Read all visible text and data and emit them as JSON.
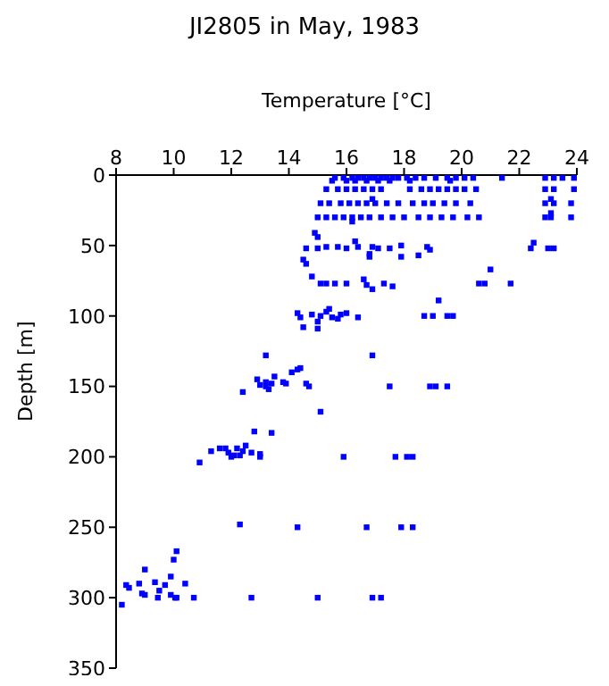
{
  "chart_data": {
    "type": "scatter",
    "title": "JI2805 in May, 1983",
    "xlabel": "Temperature [°C]",
    "ylabel": "Depth [m]",
    "xlim": [
      8,
      24
    ],
    "xticks": [
      8,
      10,
      12,
      14,
      16,
      18,
      20,
      22,
      24
    ],
    "ylim": [
      350,
      0
    ],
    "yticks": [
      0,
      50,
      100,
      150,
      200,
      250,
      300,
      350
    ],
    "marker": "square",
    "series": [
      {
        "color": "#0000ff",
        "x": [
          15.6,
          15.9,
          16.2,
          16.4,
          16.6,
          16.8,
          17.0,
          17.2,
          17.4,
          17.6,
          17.8,
          18.1,
          18.4,
          18.7,
          19.1,
          19.5,
          19.8,
          20.1,
          20.4,
          21.4,
          22.9,
          23.2,
          23.5,
          23.9,
          15.5,
          16.0,
          16.3,
          16.7,
          17.1,
          17.5,
          18.2,
          19.6,
          15.3,
          15.7,
          16.0,
          16.3,
          16.6,
          16.9,
          17.2,
          18.2,
          18.6,
          18.9,
          19.2,
          19.5,
          19.8,
          20.1,
          20.5,
          22.9,
          23.2,
          23.9,
          15.1,
          15.4,
          15.8,
          16.1,
          16.4,
          16.7,
          17.0,
          17.4,
          17.8,
          18.3,
          18.7,
          19.0,
          19.4,
          19.8,
          20.3,
          22.9,
          23.2,
          23.8,
          15.0,
          15.3,
          15.6,
          15.9,
          16.2,
          16.5,
          16.8,
          17.2,
          17.6,
          18.0,
          18.5,
          18.9,
          19.3,
          19.7,
          20.2,
          20.6,
          22.9,
          23.1,
          23.8,
          16.2,
          16.9,
          23.1,
          23.1,
          14.9,
          15.0,
          16.3,
          14.6,
          15.0,
          15.3,
          15.7,
          16.0,
          16.4,
          16.9,
          17.1,
          17.5,
          17.9,
          16.8,
          18.8,
          18.9,
          18.5,
          22.5,
          22.4,
          23.0,
          23.2,
          16.8,
          17.9,
          14.5,
          14.6,
          14.8,
          15.1,
          15.3,
          15.6,
          16.0,
          16.6,
          16.7,
          16.9,
          17.3,
          17.6,
          21.0,
          20.6,
          20.8,
          21.7,
          19.2,
          14.3,
          14.4,
          14.8,
          15.1,
          15.3,
          15.5,
          15.8,
          16.0,
          14.5,
          15.4,
          15.0,
          15.7,
          16.4,
          18.7,
          19.0,
          19.5,
          19.7,
          15.0,
          13.2,
          12.9,
          13.0,
          13.2,
          13.4,
          13.5,
          13.8,
          13.9,
          14.1,
          14.3,
          14.4,
          14.6,
          14.7,
          13.2,
          12.4,
          13.3,
          16.9,
          17.5,
          18.9,
          19.1,
          19.5,
          15.1,
          13.4,
          12.8,
          10.9,
          11.3,
          11.6,
          11.8,
          11.9,
          12.0,
          12.1,
          12.2,
          12.4,
          12.5,
          12.7,
          13.0,
          13.0,
          12.3,
          15.9,
          17.7,
          18.1,
          18.3,
          12.3,
          14.3,
          16.7,
          17.9,
          18.3,
          8.2,
          8.35,
          8.45,
          8.8,
          9.0,
          8.9,
          9.0,
          9.35,
          9.5,
          9.45,
          9.7,
          9.9,
          9.9,
          10.05,
          10.1,
          10.0,
          10.1,
          10.4,
          10.7,
          12.7,
          15.0,
          16.9,
          17.2
        ],
        "values": [
          2,
          2,
          2,
          2,
          2,
          2,
          2,
          2,
          2,
          2,
          2,
          2,
          2,
          2,
          2,
          2,
          2,
          2,
          2,
          2,
          2,
          2,
          2,
          2,
          4,
          4,
          4,
          4,
          4,
          4,
          4,
          4,
          10,
          10,
          10,
          10,
          10,
          10,
          10,
          10,
          10,
          10,
          10,
          10,
          10,
          10,
          10,
          10,
          10,
          10,
          20,
          20,
          20,
          20,
          20,
          20,
          20,
          20,
          20,
          20,
          20,
          20,
          20,
          20,
          20,
          20,
          20,
          20,
          30,
          30,
          30,
          30,
          30,
          30,
          30,
          30,
          30,
          30,
          30,
          30,
          30,
          30,
          30,
          30,
          30,
          30,
          30,
          33,
          17,
          17,
          27,
          41,
          44,
          47,
          52,
          52,
          51,
          51,
          52,
          51,
          51,
          52,
          52,
          50,
          56,
          51,
          53,
          57,
          48,
          52,
          52,
          52,
          58,
          58,
          60,
          63,
          72,
          77,
          77,
          77,
          77,
          74,
          78,
          81,
          77,
          79,
          67,
          77,
          77,
          77,
          89,
          98,
          101,
          99,
          100,
          97,
          101,
          99,
          98,
          108,
          95,
          104,
          102,
          101,
          100,
          100,
          100,
          100,
          109,
          128,
          145,
          149,
          147,
          148,
          143,
          147,
          148,
          140,
          138,
          137,
          148,
          150,
          150,
          154,
          152,
          128,
          150,
          150,
          150,
          150,
          168,
          183,
          182,
          204,
          196,
          194,
          194,
          197,
          200,
          199,
          194,
          196,
          192,
          197,
          198,
          200,
          199,
          200,
          200,
          200,
          200,
          248,
          250,
          250,
          250,
          250,
          305,
          291,
          293,
          290,
          280,
          297,
          298,
          289,
          295,
          300,
          291,
          285,
          298,
          300,
          300,
          273,
          267,
          290,
          300,
          300,
          300,
          300,
          300
        ]
      }
    ]
  }
}
